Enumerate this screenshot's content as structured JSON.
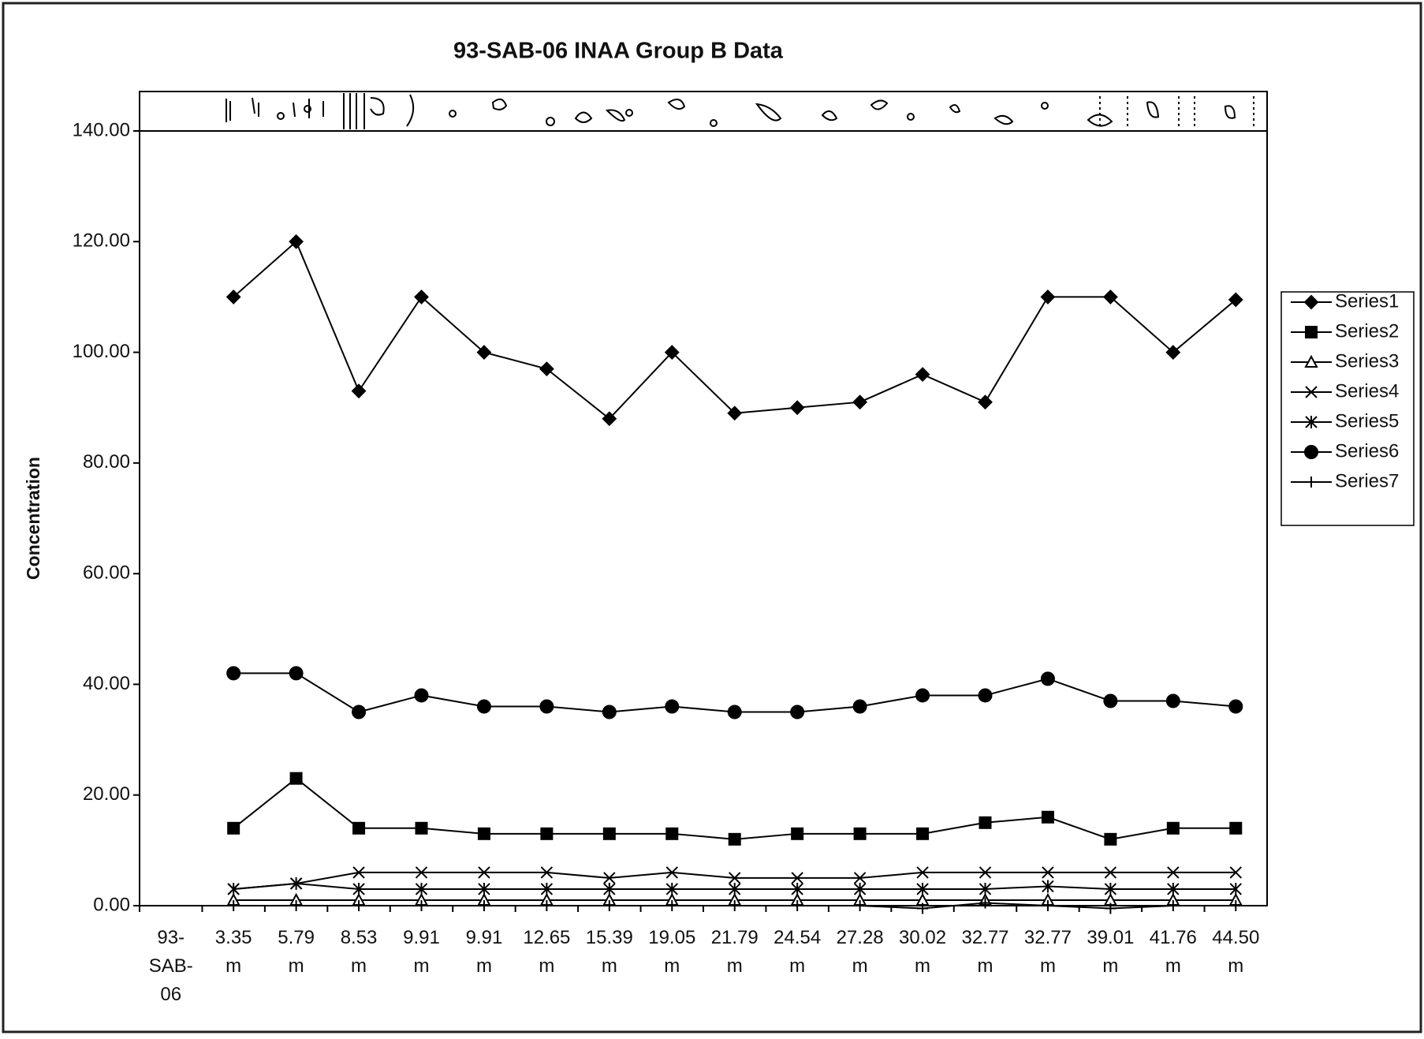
{
  "chart_data": {
    "type": "line",
    "title": "93-SAB-06  INAA Group B Data",
    "y_label": "Concentration",
    "categories": [
      "93-SAB-06",
      "3.35 m",
      "5.79 m",
      "8.53 m",
      "9.91 m",
      "9.91 m",
      "12.65 m",
      "15.39 m",
      "19.05 m",
      "21.79 m",
      "24.54 m",
      "27.28 m",
      "30.02 m",
      "32.77 m",
      "32.77 m",
      "39.01 m",
      "41.76 m",
      "44.50 m"
    ],
    "ylim": [
      0,
      140
    ],
    "yticks": [
      {
        "value": 0,
        "label": "0.00"
      },
      {
        "value": 20,
        "label": "20.00"
      },
      {
        "value": 40,
        "label": "40.00"
      },
      {
        "value": 60,
        "label": "60.00"
      },
      {
        "value": 80,
        "label": "80.00"
      },
      {
        "value": 100,
        "label": "100.00"
      },
      {
        "value": 120,
        "label": "120.00"
      },
      {
        "value": 140,
        "label": "140.00"
      }
    ],
    "grid": false,
    "legend": "right",
    "series": [
      {
        "name": "Series1",
        "color": "#000000",
        "marker": "diamond",
        "values": [
          null,
          110,
          120,
          93,
          110,
          100,
          97,
          88,
          100,
          89,
          90,
          91,
          96,
          91,
          110,
          110,
          100,
          109.5
        ]
      },
      {
        "name": "Series2",
        "color": "#000000",
        "marker": "square",
        "values": [
          null,
          14,
          23,
          14,
          14,
          13,
          13,
          13,
          13,
          12,
          13,
          13,
          13,
          15,
          16,
          12,
          14,
          14
        ]
      },
      {
        "name": "Series3",
        "color": "#000000",
        "marker": "triangle",
        "values": [
          null,
          1,
          1,
          1,
          1,
          1,
          1,
          1,
          1,
          1,
          1,
          1,
          1,
          1,
          1,
          1,
          1,
          1
        ]
      },
      {
        "name": "Series4",
        "color": "#000000",
        "marker": "x",
        "values": [
          null,
          3,
          4,
          6,
          6,
          6,
          6,
          5,
          6,
          5,
          5,
          5,
          6,
          6,
          6,
          6,
          6,
          6
        ]
      },
      {
        "name": "Series5",
        "color": "#000000",
        "marker": "star",
        "values": [
          null,
          3,
          4,
          3,
          3,
          3,
          3,
          3,
          3,
          3,
          3,
          3,
          3,
          3,
          3.5,
          3,
          3,
          3
        ]
      },
      {
        "name": "Series6",
        "color": "#000000",
        "marker": "circle",
        "values": [
          null,
          42,
          42,
          35,
          38,
          36,
          36,
          35,
          36,
          35,
          35,
          36,
          38,
          38,
          41,
          37,
          37,
          36
        ]
      },
      {
        "name": "Series7",
        "color": "#000000",
        "marker": "plus",
        "values": [
          null,
          0,
          0,
          0,
          0,
          0,
          0,
          0,
          0,
          0,
          0,
          0,
          -0.5,
          0.5,
          0,
          -0.5,
          0,
          0
        ]
      }
    ]
  }
}
